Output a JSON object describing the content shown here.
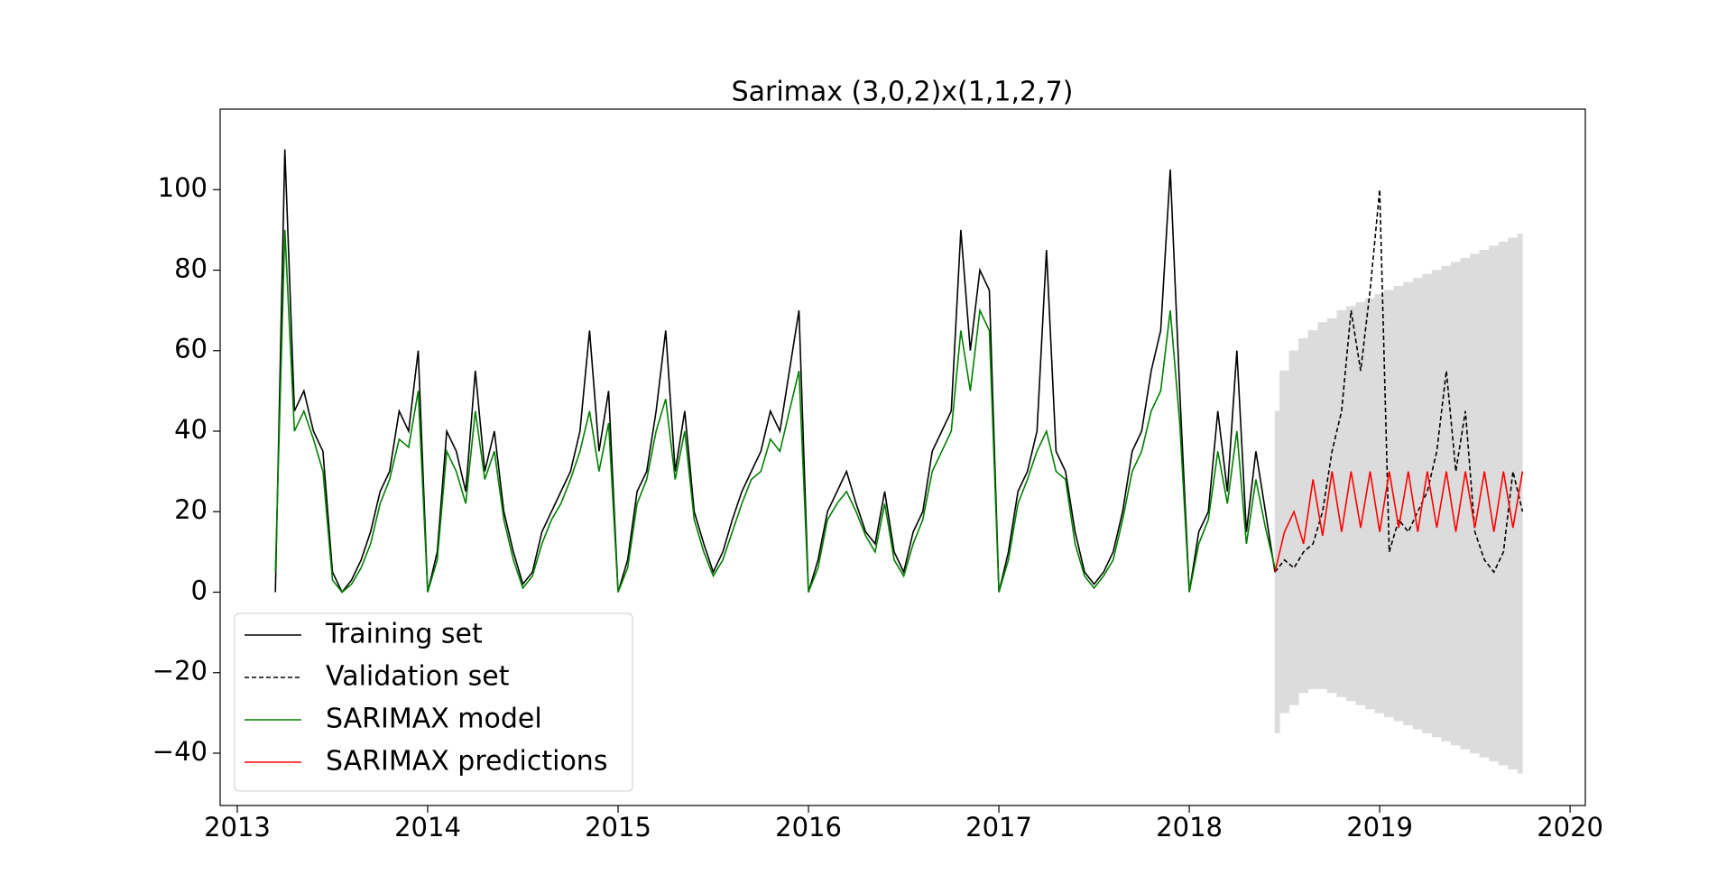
{
  "chart_data": {
    "type": "line",
    "title": "Sarimax (3,0,2)x(1,1,2,7)",
    "x": [
      2013.2,
      2013.25,
      2013.3,
      2013.35,
      2013.4,
      2013.45,
      2013.5,
      2013.55,
      2013.6,
      2013.65,
      2013.7,
      2013.75,
      2013.8,
      2013.85,
      2013.9,
      2013.95,
      2014.0,
      2014.05,
      2014.1,
      2014.15,
      2014.2,
      2014.25,
      2014.3,
      2014.35,
      2014.4,
      2014.45,
      2014.5,
      2014.55,
      2014.6,
      2014.65,
      2014.7,
      2014.75,
      2014.8,
      2014.85,
      2014.9,
      2014.95,
      2015.0,
      2015.05,
      2015.1,
      2015.15,
      2015.2,
      2015.25,
      2015.3,
      2015.35,
      2015.4,
      2015.45,
      2015.5,
      2015.55,
      2015.6,
      2015.65,
      2015.7,
      2015.75,
      2015.8,
      2015.85,
      2015.9,
      2015.95,
      2016.0,
      2016.05,
      2016.1,
      2016.15,
      2016.2,
      2016.25,
      2016.3,
      2016.35,
      2016.4,
      2016.45,
      2016.5,
      2016.55,
      2016.6,
      2016.65,
      2016.7,
      2016.75,
      2016.8,
      2016.85,
      2016.9,
      2016.95,
      2017.0,
      2017.05,
      2017.1,
      2017.15,
      2017.2,
      2017.25,
      2017.3,
      2017.35,
      2017.4,
      2017.45,
      2017.5,
      2017.55,
      2017.6,
      2017.65,
      2017.7,
      2017.75,
      2017.8,
      2017.85,
      2017.9,
      2017.95,
      2018.0,
      2018.05,
      2018.1,
      2018.15,
      2018.2,
      2018.25,
      2018.3,
      2018.35,
      2018.4,
      2018.45
    ],
    "series": [
      {
        "name": "Training set",
        "color": "#000000",
        "dash": false,
        "values": [
          0,
          110,
          45,
          50,
          40,
          35,
          5,
          0,
          3,
          8,
          15,
          25,
          30,
          45,
          40,
          60,
          0,
          10,
          40,
          35,
          25,
          55,
          30,
          40,
          20,
          10,
          2,
          5,
          15,
          20,
          25,
          30,
          40,
          65,
          35,
          50,
          0,
          8,
          25,
          30,
          45,
          65,
          30,
          45,
          20,
          12,
          5,
          10,
          18,
          25,
          30,
          35,
          45,
          40,
          55,
          70,
          0,
          8,
          20,
          25,
          30,
          22,
          15,
          12,
          25,
          10,
          5,
          15,
          20,
          35,
          40,
          45,
          90,
          60,
          80,
          75,
          0,
          10,
          25,
          30,
          40,
          85,
          35,
          30,
          15,
          5,
          2,
          5,
          10,
          20,
          35,
          40,
          55,
          65,
          105,
          50,
          0,
          15,
          20,
          45,
          25,
          60,
          15,
          35,
          20,
          5
        ]
      },
      {
        "name": "Validation set",
        "color": "#000000",
        "dash": true,
        "x": [
          2018.45,
          2018.5,
          2018.55,
          2018.6,
          2018.65,
          2018.7,
          2018.75,
          2018.8,
          2018.85,
          2018.9,
          2018.95,
          2019.0,
          2019.05,
          2019.1,
          2019.15,
          2019.2,
          2019.25,
          2019.3,
          2019.35,
          2019.4,
          2019.45,
          2019.5,
          2019.55,
          2019.6,
          2019.65,
          2019.7,
          2019.75
        ],
        "values": [
          5,
          8,
          6,
          10,
          12,
          20,
          35,
          45,
          70,
          55,
          75,
          100,
          10,
          18,
          15,
          20,
          25,
          35,
          55,
          30,
          45,
          15,
          8,
          5,
          10,
          30,
          20
        ]
      },
      {
        "name": "SARIMAX model",
        "color": "#008000",
        "dash": false,
        "values": [
          5,
          90,
          40,
          45,
          38,
          30,
          3,
          0,
          2,
          6,
          12,
          22,
          28,
          38,
          36,
          50,
          0,
          8,
          35,
          30,
          22,
          45,
          28,
          35,
          18,
          8,
          1,
          4,
          12,
          18,
          22,
          28,
          35,
          45,
          30,
          42,
          0,
          6,
          22,
          28,
          40,
          48,
          28,
          40,
          18,
          10,
          4,
          8,
          15,
          22,
          28,
          30,
          38,
          35,
          45,
          55,
          0,
          6,
          18,
          22,
          25,
          20,
          14,
          10,
          22,
          8,
          4,
          12,
          18,
          30,
          35,
          40,
          65,
          50,
          70,
          65,
          0,
          8,
          22,
          28,
          35,
          40,
          30,
          28,
          12,
          4,
          1,
          4,
          8,
          18,
          30,
          35,
          45,
          50,
          70,
          42,
          0,
          12,
          18,
          35,
          22,
          40,
          12,
          28,
          16,
          6
        ]
      },
      {
        "name": "SARIMAX predictions",
        "color": "#ff0000",
        "dash": false,
        "x": [
          2018.45,
          2018.5,
          2018.55,
          2018.6,
          2018.65,
          2018.7,
          2018.75,
          2018.8,
          2018.85,
          2018.9,
          2018.95,
          2019.0,
          2019.05,
          2019.1,
          2019.15,
          2019.2,
          2019.25,
          2019.3,
          2019.35,
          2019.4,
          2019.45,
          2019.5,
          2019.55,
          2019.6,
          2019.65,
          2019.7,
          2019.75
        ],
        "values": [
          5,
          15,
          20,
          12,
          28,
          14,
          30,
          15,
          30,
          16,
          30,
          15,
          30,
          16,
          30,
          15,
          30,
          16,
          30,
          15,
          30,
          16,
          30,
          15,
          30,
          16,
          30
        ]
      }
    ],
    "band": {
      "color": "#dcdcdc",
      "x": [
        2018.45,
        2018.5,
        2018.55,
        2018.6,
        2018.65,
        2018.7,
        2018.75,
        2018.8,
        2018.85,
        2018.9,
        2018.95,
        2019.0,
        2019.05,
        2019.1,
        2019.15,
        2019.2,
        2019.25,
        2019.3,
        2019.35,
        2019.4,
        2019.45,
        2019.5,
        2019.55,
        2019.6,
        2019.65,
        2019.7,
        2019.75
      ],
      "lower": [
        -35,
        -30,
        -28,
        -25,
        -24,
        -24,
        -25,
        -26,
        -27,
        -28,
        -29,
        -30,
        -31,
        -32,
        -33,
        -34,
        -35,
        -36,
        -37,
        -38,
        -39,
        -40,
        -41,
        -42,
        -43,
        -44,
        -45
      ],
      "upper": [
        45,
        55,
        60,
        63,
        65,
        67,
        68,
        70,
        71,
        72,
        73,
        74,
        75,
        76,
        77,
        78,
        79,
        80,
        81,
        82,
        83,
        84,
        85,
        86,
        87,
        88,
        89
      ]
    },
    "xlim": [
      2012.91,
      2020.08
    ],
    "xticks": [
      2013,
      2014,
      2015,
      2016,
      2017,
      2018,
      2019,
      2020
    ],
    "ylim": [
      -53,
      120
    ],
    "yticks": [
      -40,
      -20,
      0,
      20,
      40,
      60,
      80,
      100
    ],
    "grid": false,
    "legend": "lower left"
  }
}
